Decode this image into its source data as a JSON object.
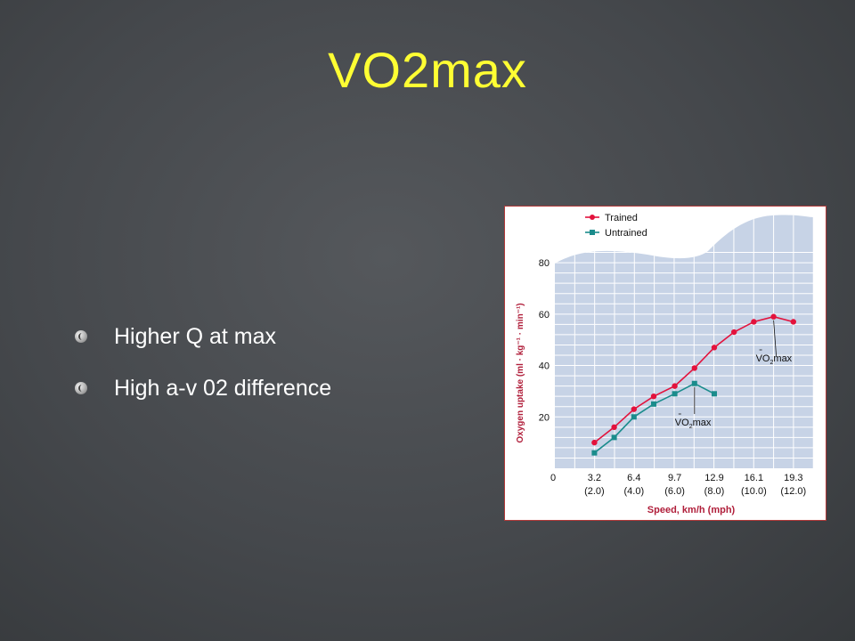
{
  "slide": {
    "title": "VO2max",
    "bullets": [
      "Higher Q at max",
      "High a-v 02 difference"
    ]
  },
  "chart_data": {
    "type": "line",
    "xlabel": "Speed, km/h (mph)",
    "ylabel": "Oxygen uptake (ml · kg⁻¹ · min⁻¹)",
    "xlim": [
      0,
      20.9
    ],
    "ylim": [
      0,
      88
    ],
    "x_tick_values": [
      0,
      3.2,
      6.4,
      9.7,
      12.9,
      16.1,
      19.3
    ],
    "x_tick_labels": [
      "0",
      "3.2",
      "6.4",
      "9.7",
      "12.9",
      "16.1",
      "19.3"
    ],
    "x_tick_sublabels": [
      "",
      "(2.0)",
      "(4.0)",
      "(6.0)",
      "(8.0)",
      "(10.0)",
      "(12.0)"
    ],
    "y_ticks": [
      20,
      40,
      60,
      80
    ],
    "grid": true,
    "legend_position": "top-left",
    "series": [
      {
        "name": "Trained",
        "color": "#e3123c",
        "marker": "circle",
        "x": [
          3.2,
          4.8,
          6.4,
          8.0,
          9.7,
          11.3,
          12.9,
          14.5,
          16.1,
          17.7,
          19.3
        ],
        "y": [
          10,
          16,
          23,
          28,
          32,
          39,
          47,
          53,
          57,
          59,
          57
        ]
      },
      {
        "name": "Untrained",
        "color": "#1a8c8c",
        "marker": "square",
        "x": [
          3.2,
          4.8,
          6.4,
          8.0,
          9.7,
          11.3,
          12.9
        ],
        "y": [
          6,
          12,
          20,
          25,
          29,
          33,
          29
        ]
      }
    ],
    "annotations": [
      {
        "text": "VO",
        "sub": "2",
        "tail": "max",
        "series": "Trained"
      },
      {
        "text": "VO",
        "sub": "2",
        "tail": "max",
        "series": "Untrained"
      }
    ]
  },
  "colors": {
    "title": "#ffff33",
    "plot_bg": "#c7d3e6",
    "grid": "#ffffff",
    "axis_label": "#b01e3a"
  }
}
